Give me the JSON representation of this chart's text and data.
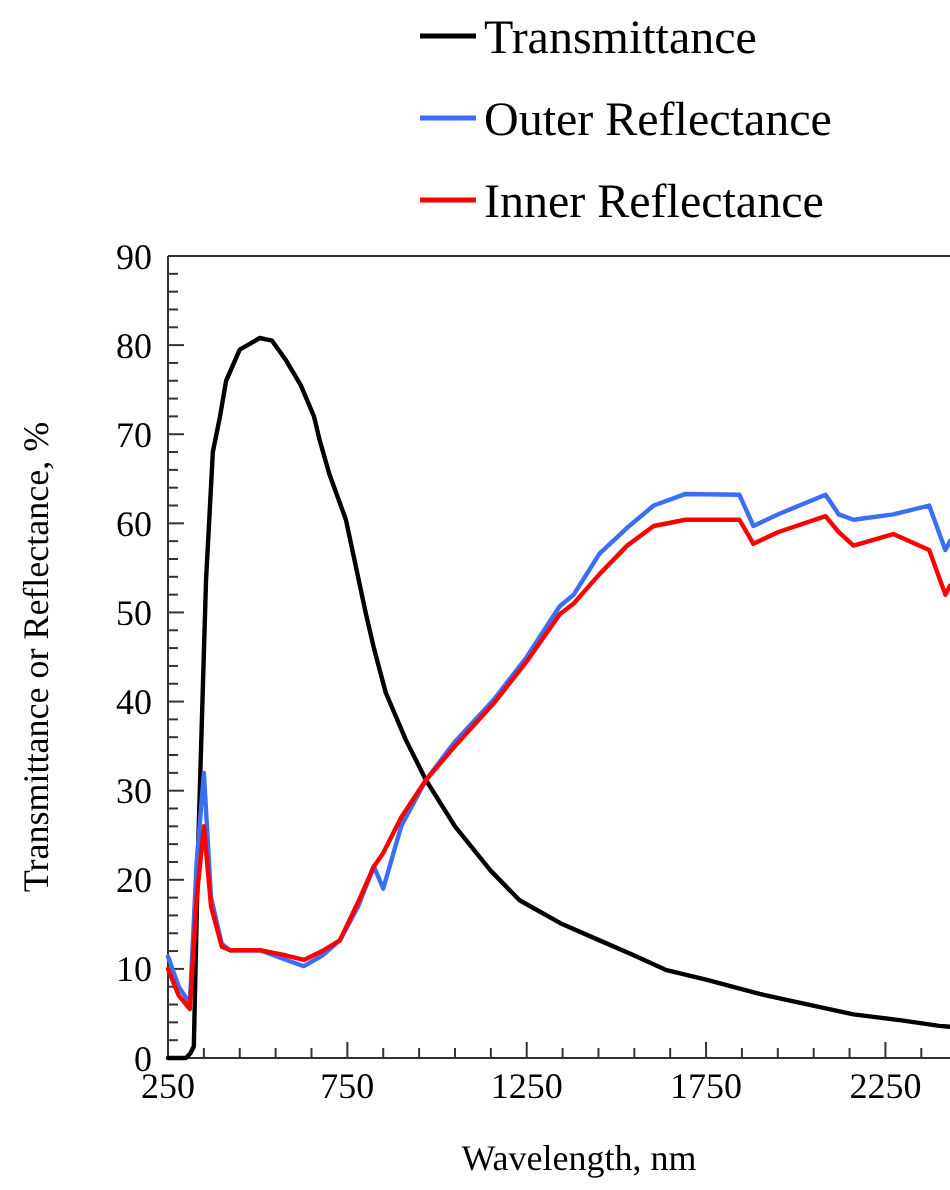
{
  "chart_data": {
    "type": "line",
    "xlabel": "Wavelength, nm",
    "ylabel": "Transmittance or Reflectance, %",
    "xlim": [
      250,
      2430
    ],
    "ylim": [
      0,
      90
    ],
    "xticks": [
      250,
      {
        "value": 350,
        "label": null
      },
      {
        "value": 450,
        "label": null
      },
      {
        "value": 550,
        "label": null
      },
      {
        "value": 650,
        "label": null
      },
      750,
      {
        "value": 850,
        "label": null
      },
      {
        "value": 950,
        "label": null
      },
      {
        "value": 1050,
        "label": null
      },
      {
        "value": 1150,
        "label": null
      },
      1250,
      {
        "value": 1350,
        "label": null
      },
      {
        "value": 1450,
        "label": null
      },
      {
        "value": 1550,
        "label": null
      },
      {
        "value": 1650,
        "label": null
      },
      1750,
      {
        "value": 1850,
        "label": null
      },
      {
        "value": 1950,
        "label": null
      },
      {
        "value": 2050,
        "label": null
      },
      {
        "value": 2150,
        "label": null
      },
      2250,
      {
        "value": 2350,
        "label": null
      }
    ],
    "yticks": [
      0,
      {
        "value": 2,
        "label": null
      },
      {
        "value": 4,
        "label": null
      },
      {
        "value": 6,
        "label": null
      },
      {
        "value": 8,
        "label": null
      },
      10,
      {
        "value": 12,
        "label": null
      },
      {
        "value": 14,
        "label": null
      },
      {
        "value": 16,
        "label": null
      },
      {
        "value": 18,
        "label": null
      },
      20,
      {
        "value": 22,
        "label": null
      },
      {
        "value": 24,
        "label": null
      },
      {
        "value": 26,
        "label": null
      },
      {
        "value": 28,
        "label": null
      },
      30,
      {
        "value": 32,
        "label": null
      },
      {
        "value": 34,
        "label": null
      },
      {
        "value": 36,
        "label": null
      },
      {
        "value": 38,
        "label": null
      },
      40,
      {
        "value": 42,
        "label": null
      },
      {
        "value": 44,
        "label": null
      },
      {
        "value": 46,
        "label": null
      },
      {
        "value": 48,
        "label": null
      },
      50,
      {
        "value": 52,
        "label": null
      },
      {
        "value": 54,
        "label": null
      },
      {
        "value": 56,
        "label": null
      },
      {
        "value": 58,
        "label": null
      },
      60,
      {
        "value": 62,
        "label": null
      },
      {
        "value": 64,
        "label": null
      },
      {
        "value": 66,
        "label": null
      },
      {
        "value": 68,
        "label": null
      },
      70,
      {
        "value": 72,
        "label": null
      },
      {
        "value": 74,
        "label": null
      },
      {
        "value": 76,
        "label": null
      },
      {
        "value": 78,
        "label": null
      },
      80,
      {
        "value": 82,
        "label": null
      },
      {
        "value": 84,
        "label": null
      },
      {
        "value": 86,
        "label": null
      },
      {
        "value": 88,
        "label": null
      },
      90
    ],
    "legend": "top",
    "grid": false,
    "marker": "none",
    "line_style": "solid",
    "series": [
      {
        "name": "Transmittance",
        "color": "#000000",
        "x": [
          250,
          300,
          312,
          322,
          335,
          356,
          375,
          395,
          412,
          450,
          506,
          540,
          579,
          620,
          657,
          673,
          700,
          746,
          802,
          824,
          857,
          913,
          969,
          1050,
          1150,
          1230,
          1350,
          1453,
          1550,
          1637,
          1750,
          1899,
          2000,
          2161,
          2300,
          2400,
          2430
        ],
        "values": [
          0,
          0,
          0.5,
          1.3,
          25,
          53.6,
          68,
          72,
          76,
          79.5,
          80.8,
          80.5,
          78.3,
          75.5,
          72,
          69.3,
          65.5,
          60.4,
          49.8,
          46,
          41,
          35.7,
          31.2,
          26,
          21,
          17.7,
          15,
          13.2,
          11.5,
          9.9,
          8.8,
          7.2,
          6.3,
          4.9,
          4.2,
          3.6,
          3.5
        ]
      },
      {
        "name": "Outer Reflectance",
        "color": "#3a6ef5",
        "x": [
          250,
          280,
          311,
          330,
          350,
          370,
          400,
          423,
          506,
          580,
          629,
          680,
          729,
          780,
          824,
          850,
          900,
          969,
          1050,
          1158,
          1250,
          1342,
          1381,
          1453,
          1530,
          1604,
          1693,
          1843,
          1882,
          1950,
          2083,
          2120,
          2161,
          2272,
          2372,
          2417,
          2430
        ],
        "values": [
          11.4,
          8,
          6.1,
          22,
          32,
          18,
          12.8,
          12.1,
          12.1,
          11,
          10.3,
          11.5,
          13.2,
          17,
          21.5,
          19,
          26,
          31.2,
          35.5,
          40.2,
          45,
          50.7,
          52,
          56.6,
          59.5,
          62,
          63.3,
          63.2,
          59.7,
          61,
          63.2,
          61,
          60.4,
          61,
          62,
          57,
          58
        ]
      },
      {
        "name": "Inner Reflectance",
        "color": "#ff0000",
        "x": [
          250,
          280,
          311,
          330,
          350,
          370,
          400,
          423,
          506,
          580,
          629,
          680,
          729,
          780,
          824,
          850,
          900,
          969,
          1050,
          1158,
          1250,
          1342,
          1381,
          1453,
          1530,
          1604,
          1693,
          1843,
          1882,
          1950,
          2083,
          2120,
          2161,
          2272,
          2372,
          2417,
          2430
        ],
        "values": [
          10,
          7,
          5.5,
          18,
          26,
          17,
          12.5,
          12.1,
          12.1,
          11.5,
          11,
          12,
          13.2,
          17.5,
          21.5,
          23,
          27,
          31.2,
          35,
          39.8,
          44.5,
          49.8,
          51,
          54.3,
          57.5,
          59.7,
          60.4,
          60.4,
          57.7,
          59,
          60.8,
          59,
          57.5,
          58.8,
          57,
          52,
          53
        ]
      }
    ]
  }
}
